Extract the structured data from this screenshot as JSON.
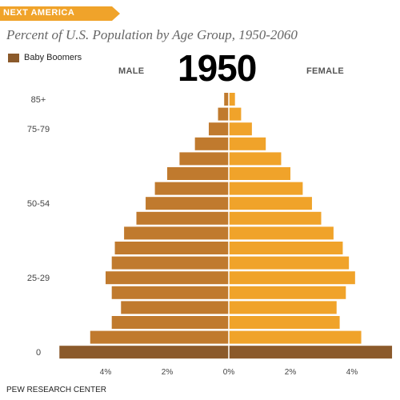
{
  "header": {
    "banner": "NEXT AMERICA",
    "title": "Percent of U.S. Population by Age Group, 1950-2060",
    "year": "1950"
  },
  "legend": {
    "label": "Baby Boomers",
    "color": "#8b5a2b"
  },
  "footer": {
    "source": "PEW RESEARCH CENTER"
  },
  "colors": {
    "banner": "#f0a32a",
    "male": "#c07a2e",
    "female": "#f0a32a",
    "boomers": "#8b5a2b",
    "axis": "#dddddd"
  },
  "chart_data": {
    "type": "bar",
    "orientation": "horizontal-pyramid",
    "year": "1950",
    "categories": [
      "0",
      "",
      "",
      "",
      "",
      "25-29",
      "",
      "",
      "",
      "",
      "50-54",
      "",
      "",
      "",
      "",
      "75-79",
      "",
      "85+"
    ],
    "y_tick_labels": [
      "85+",
      "75-79",
      "50-54",
      "25-29",
      "0"
    ],
    "series": [
      {
        "name": "MALE",
        "values": [
          5.5,
          4.5,
          3.8,
          3.5,
          3.8,
          4.0,
          3.8,
          3.7,
          3.4,
          3.0,
          2.7,
          2.4,
          2.0,
          1.6,
          1.1,
          0.65,
          0.35,
          0.15
        ]
      },
      {
        "name": "FEMALE",
        "values": [
          5.3,
          4.3,
          3.6,
          3.5,
          3.8,
          4.1,
          3.9,
          3.7,
          3.4,
          3.0,
          2.7,
          2.4,
          2.0,
          1.7,
          1.2,
          0.75,
          0.4,
          0.2
        ]
      }
    ],
    "highlight": {
      "label": "Baby Boomers",
      "categories": [
        "0"
      ]
    },
    "x_ticks": [
      -4,
      -2,
      0,
      2,
      4
    ],
    "x_tick_labels": [
      "4%",
      "2%",
      "0%",
      "2%",
      "4%"
    ],
    "xlim": [
      -5.5,
      5.3
    ],
    "xlabel": "",
    "ylabel": "",
    "grid": false
  }
}
